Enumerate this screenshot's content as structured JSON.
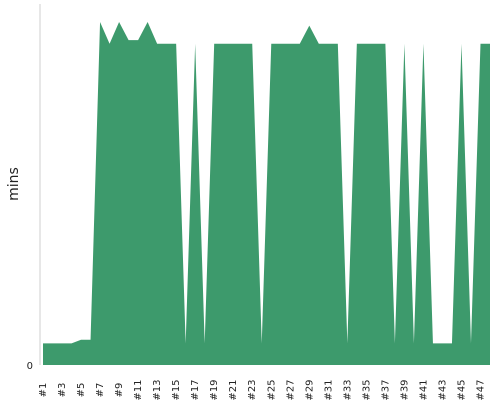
{
  "chart_data": {
    "type": "area",
    "ylabel": "mins",
    "ylim": [
      0,
      100
    ],
    "y_ticks": [
      {
        "value": 0,
        "label": "0"
      }
    ],
    "grid": false,
    "legend": "none",
    "color": "#3d9a6c",
    "series": [
      {
        "values": [
          6,
          6,
          6,
          6,
          7,
          7,
          95,
          89,
          95,
          90,
          90,
          95,
          89,
          89,
          89,
          6,
          89,
          6,
          89,
          89,
          89,
          89,
          89,
          6,
          89,
          89,
          89,
          89,
          94,
          89,
          89,
          89,
          6,
          89,
          89,
          89,
          89,
          6,
          89,
          6,
          89,
          6,
          6,
          6,
          89,
          6,
          89,
          89
        ]
      }
    ],
    "x_labels": [
      "#1",
      "#3",
      "#5",
      "#7",
      "#9",
      "#11",
      "#13",
      "#15",
      "#17",
      "#19",
      "#21",
      "#23",
      "#25",
      "#27",
      "#29",
      "#31",
      "#33",
      "#35",
      "#37",
      "#39",
      "#41",
      "#43",
      "#45",
      "#47"
    ]
  }
}
